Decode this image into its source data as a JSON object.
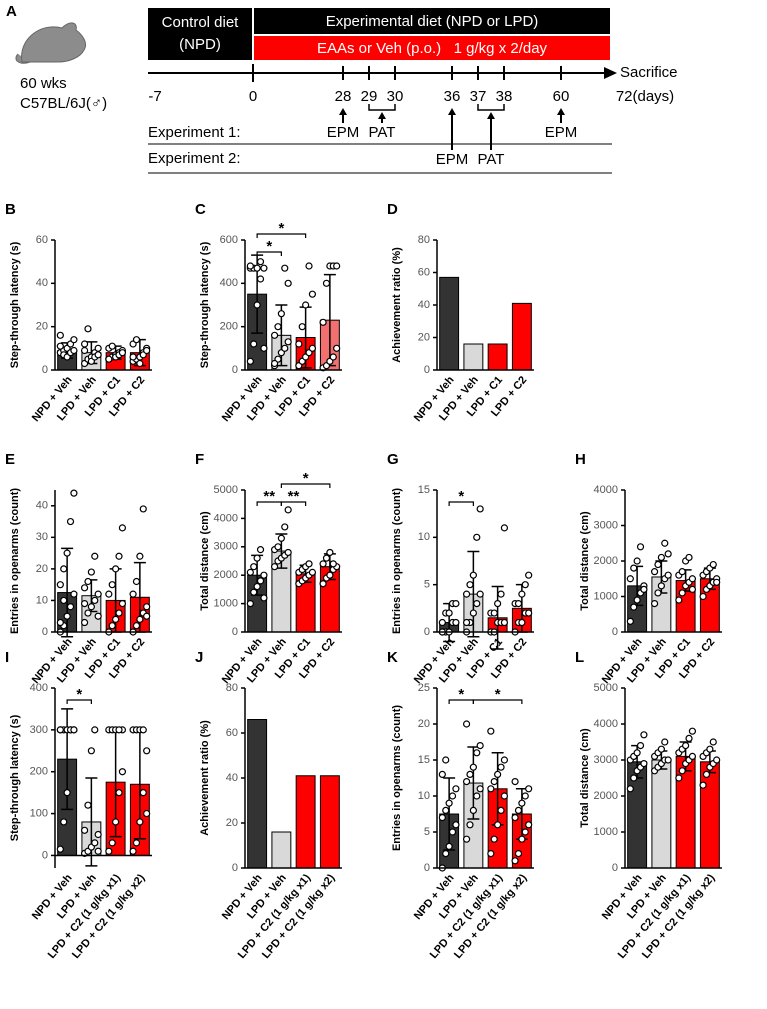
{
  "timeline": {
    "label": "A",
    "subject": [
      "60 wks",
      "C57BL/6J(♂)"
    ],
    "control_diet": [
      "Control diet",
      "(NPD)"
    ],
    "experimental_diet": "Experimental diet (NPD or LPD)",
    "treatment": "EAAs or Veh (p.o.)   1 g/kg x 2/day",
    "endpoint": "Sacrifice",
    "days": [
      "-7",
      "0",
      "28",
      "29",
      "30",
      "36",
      "37",
      "38",
      "60",
      "72(days)"
    ],
    "experiments": [
      {
        "name": "Experiment 1:",
        "tests": [
          "EPM",
          "PAT",
          "EPM"
        ]
      },
      {
        "name": "Experiment 2:",
        "tests": [
          "EPM",
          "PAT"
        ]
      }
    ]
  },
  "chart_data": [
    {
      "type": "bar",
      "panel": "B",
      "y_label": "Step-through latency (s)",
      "categories": [
        "NPD + Veh",
        "LPD + Veh",
        "LPD + C1",
        "LPD + C2"
      ],
      "colors": [
        "#333333",
        "#d9d9d9",
        "#ff0000",
        "#ff0000"
      ],
      "ylim": [
        0,
        60
      ],
      "yticks": [
        0,
        20,
        40,
        60
      ],
      "values": [
        9,
        8,
        8,
        8
      ],
      "errors": [
        3.5,
        5,
        3,
        6
      ],
      "points": [
        [
          8,
          9,
          10,
          12,
          14,
          16,
          7,
          6,
          8,
          9,
          11
        ],
        [
          3,
          5,
          6,
          8,
          10,
          12,
          19,
          4,
          6,
          7,
          9
        ],
        [
          5,
          6,
          7,
          8,
          9,
          10,
          11,
          6,
          7,
          8,
          5
        ],
        [
          4,
          5,
          6,
          8,
          10,
          12,
          14,
          3,
          7,
          9,
          6
        ]
      ]
    },
    {
      "type": "bar",
      "panel": "C",
      "y_label": "Step-through latency (s)",
      "categories": [
        "NPD + Veh",
        "LPD + Veh",
        "LPD + C1",
        "LPD + C2"
      ],
      "colors": [
        "#333333",
        "#d9d9d9",
        "#ff0000",
        "#f27070"
      ],
      "ylim": [
        0,
        600
      ],
      "yticks": [
        0,
        200,
        400,
        600
      ],
      "values": [
        350,
        160,
        150,
        230
      ],
      "errors": [
        180,
        140,
        140,
        210
      ],
      "points": [
        [
          40,
          120,
          300,
          420,
          470,
          470,
          470,
          470,
          500,
          100,
          480
        ],
        [
          20,
          50,
          80,
          100,
          130,
          160,
          200,
          260,
          470,
          400,
          30
        ],
        [
          20,
          40,
          60,
          80,
          100,
          120,
          200,
          300,
          480,
          350
        ],
        [
          10,
          20,
          40,
          60,
          100,
          220,
          400,
          480,
          480,
          480
        ]
      ],
      "brackets": [
        {
          "from": "NPD + Veh",
          "to": "LPD + Veh",
          "label": "*"
        },
        {
          "from": "NPD + Veh",
          "to": "LPD + C1",
          "label": "*"
        }
      ]
    },
    {
      "type": "bar",
      "panel": "D",
      "y_label": "Achievement ratio (%)",
      "categories": [
        "NPD + Veh",
        "LPD + Veh",
        "LPD + C1",
        "LPD + C2"
      ],
      "colors": [
        "#333333",
        "#d9d9d9",
        "#ff0000",
        "#ff0000"
      ],
      "ylim": [
        0,
        80
      ],
      "yticks": [
        0,
        20,
        40,
        60,
        80
      ],
      "values": [
        57,
        16,
        16,
        41
      ]
    },
    {
      "type": "bar",
      "panel": "E",
      "y_label": "Entries in openarms (count)",
      "categories": [
        "NPD + Veh",
        "LPD + Veh",
        "LPD + C1",
        "LPD + C2"
      ],
      "colors": [
        "#333333",
        "#d9d9d9",
        "#ff0000",
        "#ff0000"
      ],
      "ylim": [
        0,
        45
      ],
      "yticks": [
        0,
        10,
        20,
        30,
        40
      ],
      "values": [
        12.5,
        11.5,
        10,
        11
      ],
      "errors": [
        14,
        5,
        10,
        11
      ],
      "points": [
        [
          0,
          2,
          5,
          8,
          12,
          15,
          20,
          25,
          35,
          44,
          3,
          10
        ],
        [
          3,
          6,
          8,
          10,
          12,
          14,
          16,
          19,
          24,
          5,
          9
        ],
        [
          0,
          2,
          4,
          6,
          9,
          12,
          15,
          20,
          24,
          33
        ],
        [
          0,
          2,
          4,
          6,
          8,
          12,
          16,
          24,
          39,
          5
        ]
      ]
    },
    {
      "type": "bar",
      "panel": "F",
      "y_label": "Total distance (cm)",
      "categories": [
        "NPD + Veh",
        "LPD + Veh",
        "LPD + C1",
        "LPD + C2"
      ],
      "colors": [
        "#333333",
        "#d9d9d9",
        "#ff0000",
        "#ff0000"
      ],
      "ylim": [
        0,
        5000
      ],
      "yticks": [
        0,
        1000,
        2000,
        3000,
        4000,
        5000
      ],
      "values": [
        2000,
        2850,
        2050,
        2300
      ],
      "errors": [
        700,
        600,
        300,
        450
      ],
      "points": [
        [
          1000,
          1400,
          1600,
          1800,
          2000,
          2100,
          2300,
          2600,
          2900,
          1200
        ],
        [
          2300,
          2500,
          2600,
          2700,
          2800,
          2900,
          3000,
          3300,
          3700,
          4300
        ],
        [
          1700,
          1800,
          1900,
          2000,
          2100,
          2100,
          2200,
          2300,
          2400
        ],
        [
          1700,
          1900,
          2000,
          2200,
          2300,
          2400,
          2600,
          2800,
          2400
        ]
      ],
      "brackets": [
        {
          "from": "NPD + Veh",
          "to": "LPD + Veh",
          "label": "**"
        },
        {
          "from": "LPD + Veh",
          "to": "LPD + C1",
          "label": "**"
        },
        {
          "from": "LPD + Veh",
          "to": "LPD + C2",
          "label": "*"
        }
      ]
    },
    {
      "type": "bar",
      "panel": "G",
      "y_label": "Entries in openarms (count)",
      "categories": [
        "NPD + Veh",
        "LPD + Veh",
        "LPD + C1",
        "LPD + C2"
      ],
      "colors": [
        "#333333",
        "#d9d9d9",
        "#ff0000",
        "#ff0000"
      ],
      "ylim": [
        0,
        15
      ],
      "yticks": [
        0,
        5,
        10,
        15
      ],
      "values": [
        1,
        4,
        1.5,
        2.5
      ],
      "errors": [
        2,
        4.5,
        3.3,
        2.5
      ],
      "points": [
        [
          0,
          0,
          0,
          1,
          1,
          1,
          2,
          2,
          3,
          3,
          0
        ],
        [
          0,
          1,
          2,
          3,
          4,
          4,
          5,
          6,
          10,
          13,
          1
        ],
        [
          0,
          0,
          1,
          1,
          1,
          2,
          2,
          3,
          4,
          11
        ],
        [
          0,
          1,
          1,
          2,
          2,
          3,
          3,
          4,
          5,
          6
        ]
      ],
      "brackets": [
        {
          "from": "NPD + Veh",
          "to": "LPD + Veh",
          "label": "*"
        }
      ]
    },
    {
      "type": "bar",
      "panel": "H",
      "y_label": "Total distance (cm)",
      "categories": [
        "NPD + Veh",
        "LPD + Veh",
        "LPD + C1",
        "LPD + C2"
      ],
      "colors": [
        "#333333",
        "#d9d9d9",
        "#ff0000",
        "#ff0000"
      ],
      "ylim": [
        0,
        4000
      ],
      "yticks": [
        0,
        1000,
        2000,
        3000,
        4000
      ],
      "values": [
        1300,
        1550,
        1450,
        1500
      ],
      "errors": [
        550,
        450,
        300,
        300
      ],
      "points": [
        [
          300,
          700,
          900,
          1100,
          1300,
          1500,
          1800,
          2000,
          2400,
          1200
        ],
        [
          800,
          1100,
          1300,
          1500,
          1600,
          1700,
          1900,
          2100,
          2500,
          2200
        ],
        [
          900,
          1100,
          1300,
          1400,
          1500,
          1600,
          1700,
          2000,
          2100,
          1200
        ],
        [
          1000,
          1200,
          1300,
          1400,
          1500,
          1600,
          1700,
          1800,
          1900,
          1400
        ]
      ]
    },
    {
      "type": "bar",
      "panel": "I",
      "y_label": "Step-through latency (s)",
      "categories": [
        "NPD + Veh",
        "LPD + Veh",
        "LPD + C2 (1 g/kg x1)",
        "LPD + C2 (1 g/kg x2)"
      ],
      "colors": [
        "#333333",
        "#d9d9d9",
        "#ff0000",
        "#ff0000"
      ],
      "ylim": [
        -30,
        400
      ],
      "yticks": [
        0,
        100,
        200,
        300,
        400
      ],
      "values": [
        230,
        80,
        175,
        170
      ],
      "errors": [
        120,
        105,
        130,
        130
      ],
      "points": [
        [
          15,
          80,
          150,
          300,
          300,
          300,
          300,
          300,
          300,
          300,
          300
        ],
        [
          5,
          10,
          20,
          30,
          50,
          60,
          120,
          250,
          300,
          10
        ],
        [
          10,
          30,
          80,
          150,
          300,
          300,
          300,
          300,
          300,
          200
        ],
        [
          10,
          30,
          80,
          150,
          250,
          300,
          300,
          300,
          300,
          100
        ]
      ],
      "brackets": [
        {
          "from": "NPD + Veh",
          "to": "LPD + Veh",
          "label": "*"
        }
      ]
    },
    {
      "type": "bar",
      "panel": "J",
      "y_label": "Achievement ratio (%)",
      "categories": [
        "NPD + Veh",
        "LPD + Veh",
        "LPD + C2 (1 g/kg x1)",
        "LPD + C2 (1 g/kg x2)"
      ],
      "colors": [
        "#333333",
        "#d9d9d9",
        "#ff0000",
        "#ff0000"
      ],
      "ylim": [
        0,
        80
      ],
      "yticks": [
        0,
        20,
        40,
        60,
        80
      ],
      "values": [
        66,
        16,
        41,
        41
      ]
    },
    {
      "type": "bar",
      "panel": "K",
      "y_label": "Entries in openarms (count)",
      "categories": [
        "NPD + Veh",
        "LPD + Veh",
        "LPD + C2 (1 g/kg x1)",
        "LPD + C2 (1 g/kg x2)"
      ],
      "colors": [
        "#333333",
        "#d9d9d9",
        "#ff0000",
        "#ff0000"
      ],
      "ylim": [
        0,
        25
      ],
      "yticks": [
        0,
        5,
        10,
        15,
        20,
        25
      ],
      "values": [
        7.5,
        11.8,
        11,
        7.5
      ],
      "errors": [
        5,
        5,
        5,
        3.5
      ],
      "points": [
        [
          0,
          2,
          3,
          5,
          6,
          7,
          8,
          9,
          10,
          11,
          13,
          15
        ],
        [
          4,
          6,
          8,
          10,
          11,
          12,
          13,
          14,
          16,
          17,
          20
        ],
        [
          2,
          4,
          6,
          8,
          10,
          11,
          12,
          13,
          14,
          15,
          19
        ],
        [
          1,
          2,
          4,
          5,
          6,
          7,
          8,
          9,
          10,
          11,
          12
        ]
      ],
      "brackets": [
        {
          "from": "NPD + Veh",
          "to": "LPD + Veh",
          "label": "*"
        },
        {
          "from": "LPD + Veh",
          "to": "LPD + C2 (1 g/kg x2)",
          "label": "*"
        }
      ]
    },
    {
      "type": "bar",
      "panel": "L",
      "y_label": "Total distance (cm)",
      "categories": [
        "NPD + Veh",
        "LPD + Veh",
        "LPD + C2 (1 g/kg x1)",
        "LPD + C2 (1 g/kg x2)"
      ],
      "colors": [
        "#333333",
        "#d9d9d9",
        "#ff0000",
        "#ff0000"
      ],
      "ylim": [
        0,
        5000
      ],
      "yticks": [
        0,
        1000,
        2000,
        3000,
        4000,
        5000
      ],
      "values": [
        2950,
        3000,
        3100,
        2950
      ],
      "errors": [
        450,
        250,
        400,
        300
      ],
      "points": [
        [
          2200,
          2500,
          2700,
          2800,
          2900,
          3000,
          3100,
          3200,
          3400,
          3700
        ],
        [
          2700,
          2800,
          2900,
          3000,
          3000,
          3100,
          3200,
          3300,
          3500
        ],
        [
          2500,
          2700,
          2900,
          3000,
          3100,
          3200,
          3300,
          3400,
          3600,
          3800
        ],
        [
          2300,
          2600,
          2800,
          2900,
          3000,
          3100,
          3200,
          3300,
          3500
        ]
      ]
    }
  ]
}
